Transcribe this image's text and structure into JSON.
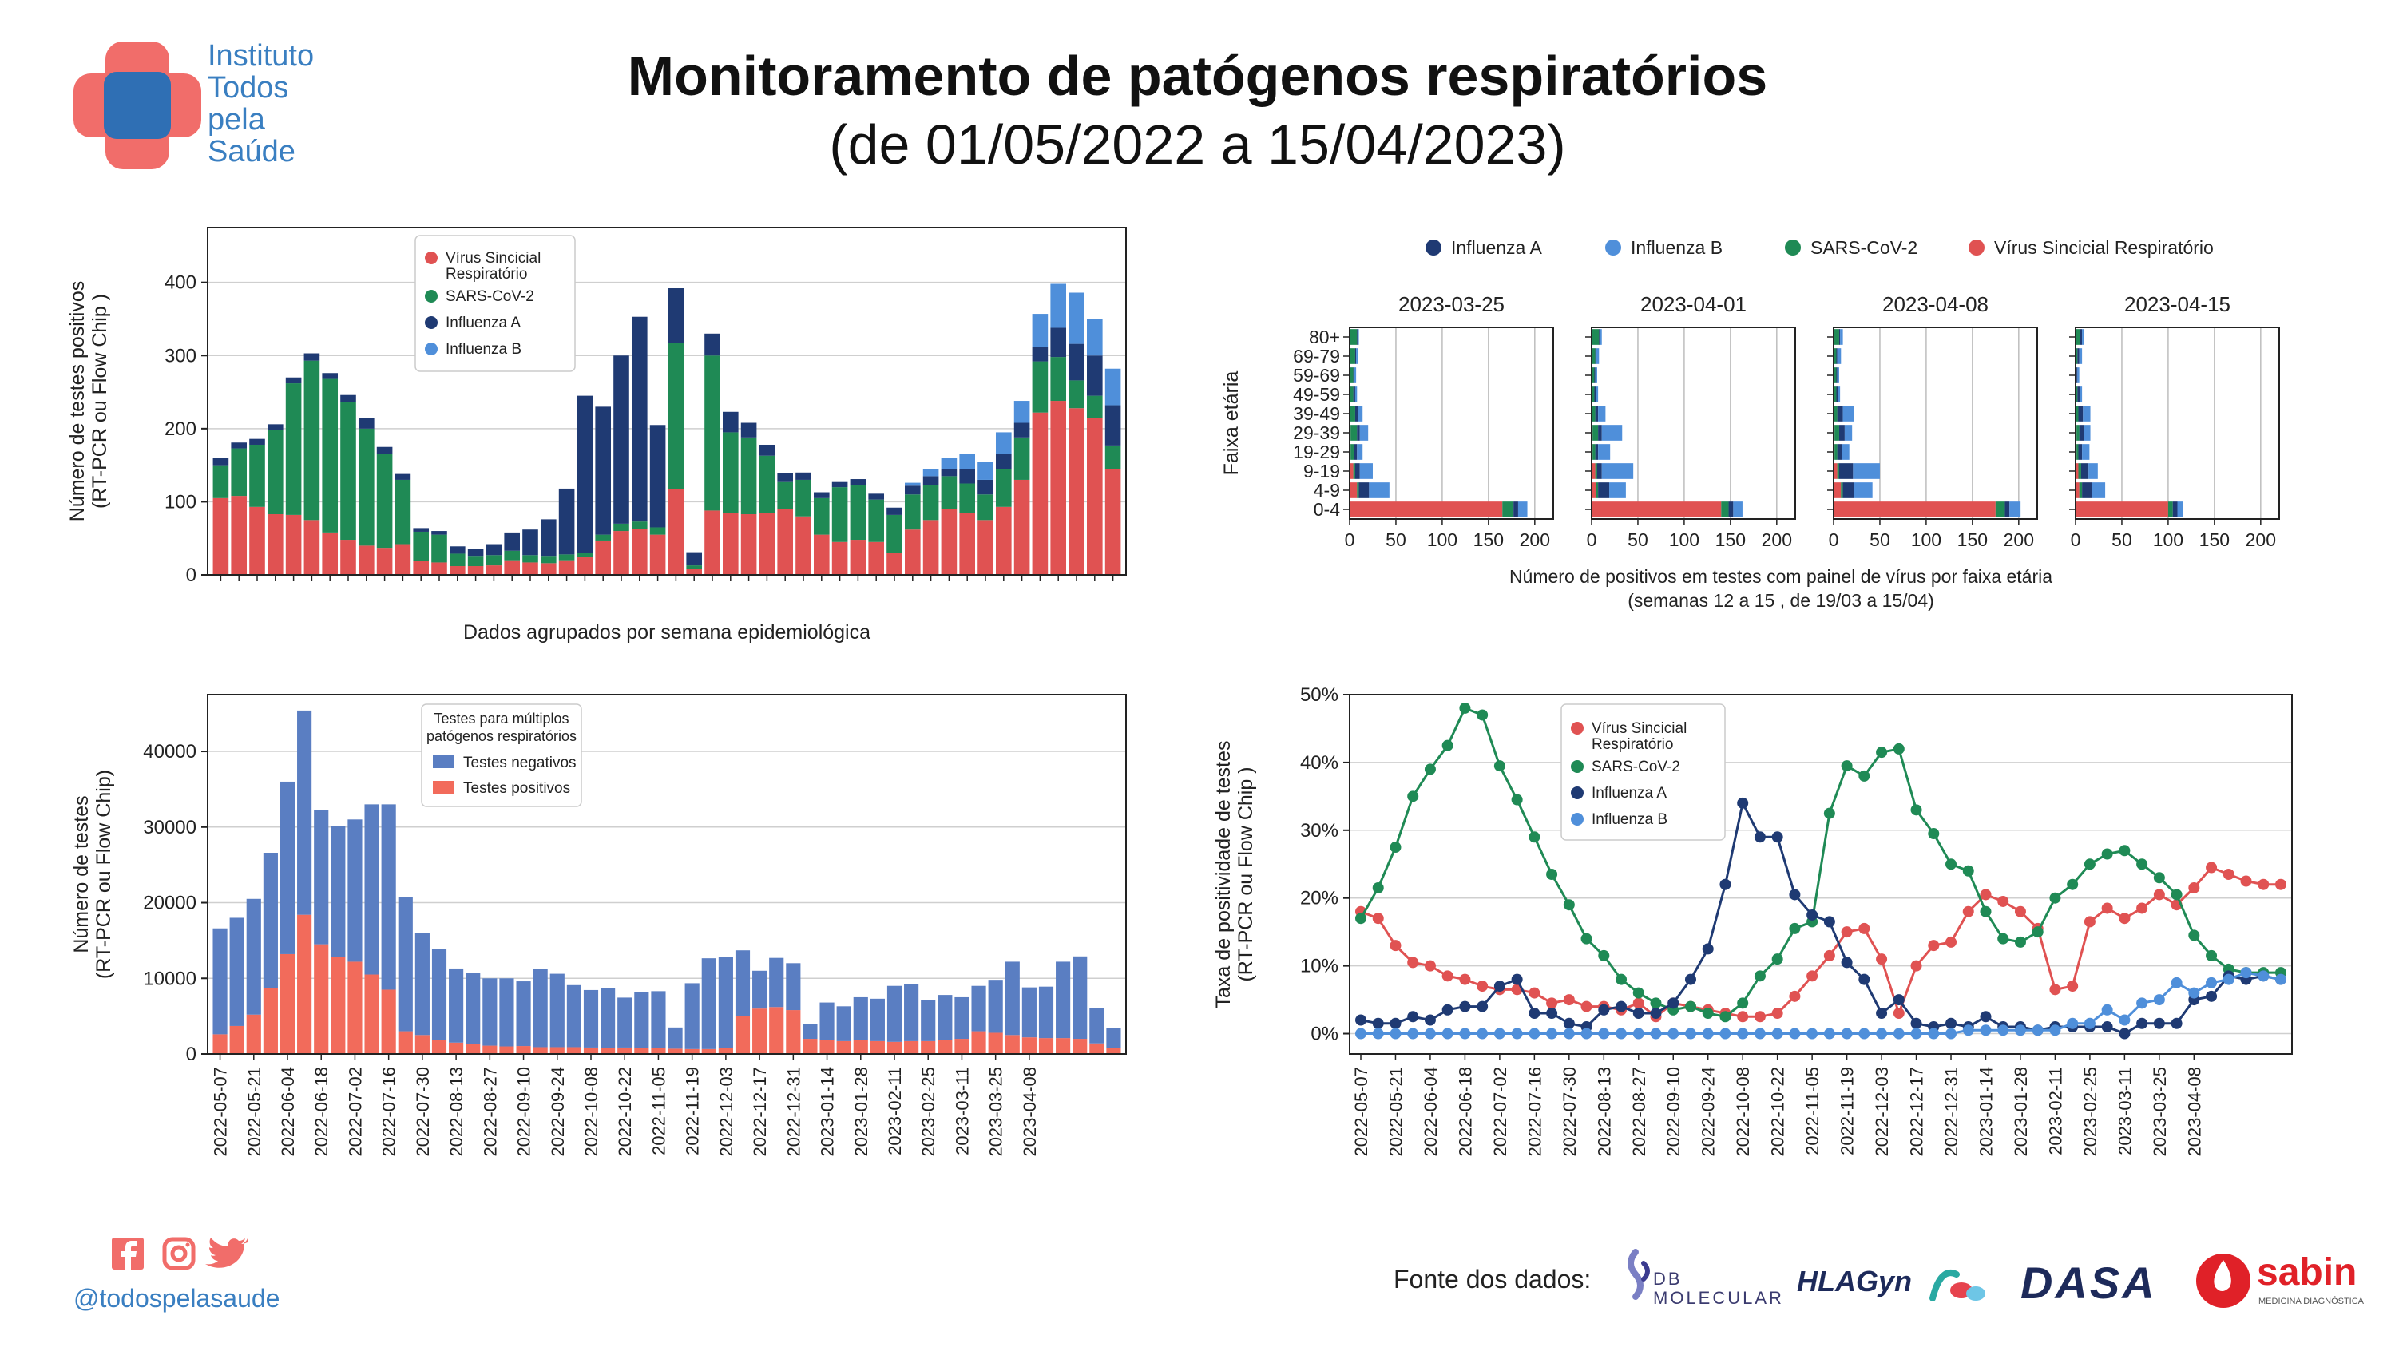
{
  "header": {
    "title": "Monitoramento de patógenos respiratórios",
    "subtitle": "(de 01/05/2022 a 15/04/2023)",
    "org_lines": [
      "Instituto",
      "Todos",
      "pela",
      "Saúde"
    ],
    "colors": {
      "logo_red": "#f16d6a",
      "logo_blue": "#2f6fb4",
      "text_blue": "#3a7fc1"
    }
  },
  "footer": {
    "social_handle": "@todospelasaude",
    "social_icons": [
      "facebook-icon",
      "instagram-icon",
      "twitter-icon"
    ],
    "source_label": "Fonte dos dados:",
    "sponsors": [
      "DB MOLECULAR",
      "HLAGyn",
      "DASA",
      "sabin",
      "MEDICINA DIAGNÓSTICA"
    ]
  },
  "chart_data": [
    {
      "id": "positives",
      "type": "bar",
      "stacked": true,
      "ylabel": [
        "Número de testes positivos",
        "(RT-PCR ou Flow Chip )"
      ],
      "xlabel": "Dados agrupados por semana epidemiológica",
      "ylim": [
        0,
        475
      ],
      "yticks": [
        0,
        100,
        200,
        300,
        400
      ],
      "grid": true,
      "legend_position": "top-center",
      "series": [
        {
          "name": "Vírus Sincicial Respiratório",
          "color": "#e05252",
          "values": [
            105,
            108,
            93,
            83,
            82,
            75,
            58,
            48,
            40,
            37,
            42,
            19,
            17,
            12,
            12,
            13,
            20,
            17,
            16,
            20,
            24,
            47,
            60,
            63,
            55,
            117,
            8,
            88,
            85,
            83,
            85,
            90,
            80,
            55,
            45,
            48,
            45,
            30,
            62,
            75,
            90,
            85,
            75,
            93,
            130,
            222,
            238,
            228,
            215,
            145
          ]
        },
        {
          "name": "SARS-CoV-2",
          "color": "#1f8a55",
          "values": [
            45,
            65,
            85,
            115,
            180,
            218,
            210,
            188,
            160,
            128,
            88,
            40,
            38,
            17,
            14,
            14,
            13,
            10,
            10,
            8,
            6,
            8,
            10,
            10,
            10,
            200,
            5,
            212,
            110,
            105,
            78,
            37,
            50,
            50,
            75,
            75,
            58,
            52,
            48,
            48,
            45,
            40,
            35,
            52,
            58,
            70,
            60,
            38,
            30,
            32
          ]
        },
        {
          "name": "Influenza A",
          "color": "#1f3a73",
          "values": [
            10,
            8,
            8,
            8,
            8,
            10,
            8,
            10,
            15,
            10,
            8,
            5,
            5,
            10,
            10,
            15,
            25,
            35,
            50,
            90,
            215,
            175,
            230,
            280,
            140,
            75,
            18,
            30,
            28,
            20,
            15,
            12,
            10,
            8,
            7,
            8,
            8,
            10,
            12,
            12,
            10,
            20,
            20,
            20,
            20,
            20,
            40,
            50,
            55,
            55
          ]
        },
        {
          "name": "Influenza B",
          "color": "#4f8fda",
          "values": [
            0,
            0,
            0,
            0,
            0,
            0,
            0,
            0,
            0,
            0,
            0,
            0,
            0,
            0,
            0,
            0,
            0,
            0,
            0,
            0,
            0,
            0,
            0,
            0,
            0,
            0,
            0,
            0,
            0,
            0,
            0,
            0,
            0,
            0,
            0,
            0,
            0,
            0,
            4,
            10,
            15,
            20,
            25,
            30,
            30,
            45,
            60,
            70,
            50,
            50
          ]
        }
      ]
    },
    {
      "id": "tests",
      "type": "bar",
      "stacked": true,
      "ylabel": [
        "Número de testes",
        "(RT-PCR ou Flow Chip)"
      ],
      "legend_title": [
        "Testes para múltiplos",
        "patógenos respiratórios"
      ],
      "legend_position": "top-center",
      "ylim": [
        0,
        47500
      ],
      "yticks": [
        0,
        10000,
        20000,
        30000,
        40000
      ],
      "grid": true,
      "x_tick_labels": [
        "2022-05-07",
        "2022-05-21",
        "2022-06-04",
        "2022-06-18",
        "2022-07-02",
        "2022-07-16",
        "2022-07-30",
        "2022-08-13",
        "2022-08-27",
        "2022-09-10",
        "2022-09-24",
        "2022-10-08",
        "2022-10-22",
        "2022-11-05",
        "2022-11-19",
        "2022-12-03",
        "2022-12-17",
        "2022-12-31",
        "2023-01-14",
        "2023-01-28",
        "2023-02-11",
        "2023-02-25",
        "2023-03-11",
        "2023-03-25",
        "2023-04-08"
      ],
      "series": [
        {
          "name": "Testes positivos",
          "color": "#f26b5b",
          "values": [
            2600,
            3700,
            5200,
            8700,
            13200,
            18400,
            14500,
            12800,
            12200,
            10500,
            8500,
            3000,
            2500,
            1900,
            1500,
            1300,
            1100,
            1000,
            1050,
            900,
            900,
            900,
            850,
            800,
            850,
            800,
            800,
            700,
            650,
            650,
            800,
            5000,
            6000,
            6200,
            5800,
            2000,
            1800,
            1700,
            1800,
            1700,
            1600,
            1700,
            1700,
            1800,
            2000,
            3000,
            2800,
            2500,
            2200,
            2100,
            2100,
            2000,
            1400,
            800
          ]
        },
        {
          "name": "Testes negativos",
          "color": "#5a7ec2",
          "values": [
            14000,
            14300,
            15300,
            17900,
            22800,
            27000,
            17800,
            17300,
            18800,
            22500,
            24500,
            17700,
            13500,
            12000,
            9800,
            9400,
            8900,
            9000,
            8550,
            10300,
            9700,
            8200,
            7600,
            7900,
            6600,
            7400,
            7500,
            2800,
            8700,
            12000,
            12000,
            8700,
            5000,
            6500,
            6200,
            2000,
            5000,
            4600,
            5700,
            5600,
            7400,
            7500,
            5400,
            6000,
            5500,
            6000,
            7000,
            9700,
            6600,
            6800,
            10100,
            10900,
            4700,
            2600
          ]
        }
      ]
    },
    {
      "id": "age",
      "type": "bar",
      "orientation": "horizontal",
      "stacked": true,
      "ylabel": "Faixa etária",
      "xlabel": [
        "Número de positivos em testes com painel de vírus por faixa etária",
        "(semanas 12 a 15 , de 19/03 a 15/04)"
      ],
      "categories": [
        "0-4",
        "4-9",
        "9-19",
        "19-29",
        "29-39",
        "39-49",
        "49-59",
        "59-69",
        "69-79",
        "80+"
      ],
      "xlim": [
        0,
        220
      ],
      "xticks": [
        0,
        50,
        100,
        150,
        200
      ],
      "grid": true,
      "legend_position": "top",
      "series_names": [
        "Influenza A",
        "Influenza B",
        "SARS-CoV-2",
        "Vírus Sincicial Respiratório"
      ],
      "series_colors": [
        "#1f3a73",
        "#4f8fda",
        "#1f8a55",
        "#e05252"
      ],
      "panels": [
        {
          "title": "2023-03-25",
          "rsv": [
            165,
            8,
            4,
            1,
            1,
            0,
            0,
            0,
            0,
            0
          ],
          "sars": [
            12,
            2,
            2,
            4,
            7,
            6,
            4,
            4,
            6,
            8
          ],
          "fluA": [
            5,
            11,
            5,
            3,
            3,
            3,
            2,
            1,
            1,
            1
          ],
          "fluB": [
            10,
            22,
            14,
            6,
            9,
            5,
            2,
            2,
            2,
            1
          ]
        },
        {
          "title": "2023-04-01",
          "rsv": [
            140,
            5,
            4,
            1,
            1,
            0,
            0,
            0,
            0,
            0
          ],
          "sars": [
            8,
            2,
            2,
            3,
            6,
            4,
            3,
            3,
            4,
            8
          ],
          "fluA": [
            5,
            12,
            5,
            3,
            4,
            3,
            2,
            1,
            1,
            1
          ],
          "fluB": [
            10,
            18,
            34,
            13,
            22,
            8,
            2,
            2,
            3,
            2
          ]
        },
        {
          "title": "2023-04-08",
          "rsv": [
            175,
            8,
            4,
            1,
            1,
            0,
            0,
            0,
            0,
            0
          ],
          "sars": [
            10,
            2,
            2,
            3,
            5,
            4,
            3,
            3,
            3,
            6
          ],
          "fluA": [
            5,
            12,
            15,
            5,
            6,
            6,
            2,
            1,
            1,
            1
          ],
          "fluB": [
            12,
            20,
            29,
            8,
            8,
            12,
            2,
            2,
            4,
            3
          ]
        },
        {
          "title": "2023-04-15",
          "rsv": [
            100,
            4,
            3,
            1,
            1,
            0,
            0,
            0,
            0,
            0
          ],
          "sars": [
            5,
            3,
            3,
            2,
            3,
            3,
            2,
            1,
            2,
            5
          ],
          "fluA": [
            5,
            11,
            8,
            4,
            5,
            5,
            3,
            1,
            2,
            2
          ],
          "fluB": [
            6,
            14,
            10,
            8,
            7,
            8,
            2,
            2,
            3,
            2
          ]
        }
      ]
    },
    {
      "id": "positivity",
      "type": "line",
      "markers": true,
      "ylabel": [
        "Taxa de positividade de testes",
        "(RT-PCR ou Flow Chip )"
      ],
      "ylim": [
        -0.03,
        0.5
      ],
      "yticks": [
        0,
        0.1,
        0.2,
        0.3,
        0.4,
        0.5
      ],
      "ytick_labels": [
        "0%",
        "10%",
        "20%",
        "30%",
        "40%",
        "50%"
      ],
      "grid": true,
      "legend_position": "top-center",
      "x_tick_labels": [
        "2022-05-07",
        "2022-05-21",
        "2022-06-04",
        "2022-06-18",
        "2022-07-02",
        "2022-07-16",
        "2022-07-30",
        "2022-08-13",
        "2022-08-27",
        "2022-09-10",
        "2022-09-24",
        "2022-10-08",
        "2022-10-22",
        "2022-11-05",
        "2022-11-19",
        "2022-12-03",
        "2022-12-17",
        "2022-12-31",
        "2023-01-14",
        "2023-01-28",
        "2023-02-11",
        "2023-02-25",
        "2023-03-11",
        "2023-03-25",
        "2023-04-08"
      ],
      "series": [
        {
          "name": "Vírus Sincicial Respiratório",
          "color": "#e05252",
          "values": [
            0.18,
            0.17,
            0.13,
            0.105,
            0.1,
            0.085,
            0.08,
            0.07,
            0.065,
            0.065,
            0.06,
            0.045,
            0.05,
            0.04,
            0.04,
            0.035,
            0.045,
            0.025,
            0.045,
            0.04,
            0.035,
            0.03,
            0.025,
            0.025,
            0.03,
            0.055,
            0.085,
            0.115,
            0.15,
            0.155,
            0.11,
            0.03,
            0.1,
            0.13,
            0.135,
            0.18,
            0.205,
            0.195,
            0.18,
            0.155,
            0.065,
            0.07,
            0.165,
            0.185,
            0.17,
            0.185,
            0.205,
            0.19,
            0.215,
            0.245,
            0.235,
            0.225,
            0.22,
            0.22
          ]
        },
        {
          "name": "SARS-CoV-2",
          "color": "#1f8a55",
          "values": [
            0.17,
            0.215,
            0.275,
            0.35,
            0.39,
            0.425,
            0.48,
            0.47,
            0.395,
            0.345,
            0.29,
            0.235,
            0.19,
            0.14,
            0.115,
            0.08,
            0.06,
            0.045,
            0.035,
            0.04,
            0.03,
            0.025,
            0.045,
            0.085,
            0.11,
            0.155,
            0.165,
            0.325,
            0.395,
            0.38,
            0.415,
            0.42,
            0.33,
            0.295,
            0.25,
            0.24,
            0.18,
            0.14,
            0.135,
            0.15,
            0.2,
            0.22,
            0.25,
            0.265,
            0.27,
            0.25,
            0.23,
            0.205,
            0.145,
            0.115,
            0.095,
            0.09,
            0.09,
            0.09
          ]
        },
        {
          "name": "Influenza A",
          "color": "#1f3a73",
          "values": [
            0.02,
            0.015,
            0.015,
            0.025,
            0.02,
            0.035,
            0.04,
            0.04,
            0.07,
            0.08,
            0.03,
            0.03,
            0.015,
            0.01,
            0.035,
            0.04,
            0.03,
            0.03,
            0.045,
            0.08,
            0.125,
            0.22,
            0.34,
            0.29,
            0.29,
            0.205,
            0.175,
            0.165,
            0.105,
            0.08,
            0.03,
            0.05,
            0.015,
            0.01,
            0.015,
            0.01,
            0.025,
            0.01,
            0.01,
            0.005,
            0.01,
            0.01,
            0.01,
            0.01,
            0.0,
            0.015,
            0.015,
            0.015,
            0.05,
            0.055,
            0.085,
            0.08,
            0.085,
            0.08
          ]
        },
        {
          "name": "Influenza B",
          "color": "#4f8fda",
          "values": [
            0,
            0,
            0,
            0,
            0,
            0,
            0,
            0,
            0,
            0,
            0,
            0,
            0,
            0,
            0,
            0,
            0,
            0,
            0,
            0,
            0,
            0,
            0,
            0,
            0,
            0,
            0,
            0,
            0,
            0,
            0,
            0,
            0,
            0,
            0,
            0.005,
            0.005,
            0.005,
            0.005,
            0.005,
            0.005,
            0.015,
            0.015,
            0.035,
            0.02,
            0.045,
            0.05,
            0.075,
            0.06,
            0.075,
            0.08,
            0.09,
            0.085,
            0.08
          ]
        }
      ]
    }
  ]
}
